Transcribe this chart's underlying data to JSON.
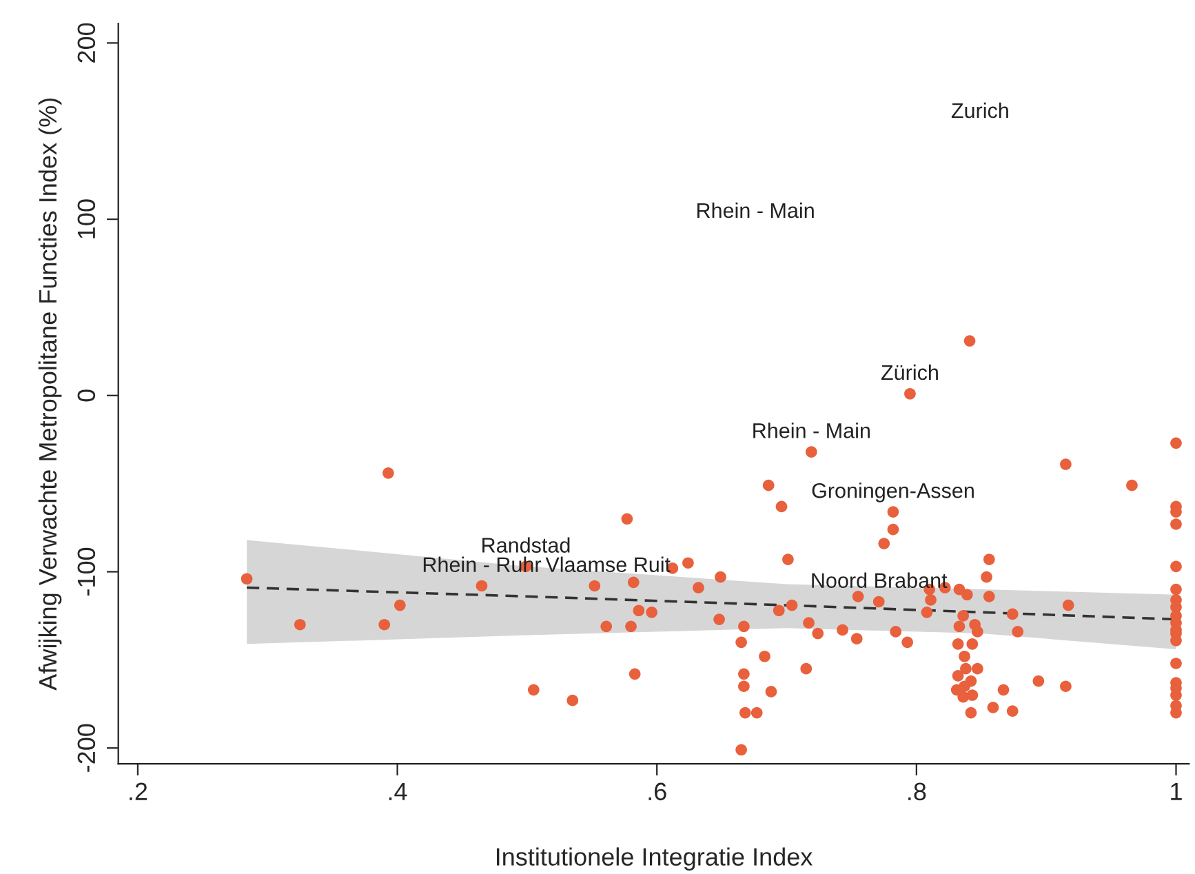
{
  "chart_data": {
    "type": "scatter",
    "xlabel": "Institutionele Integratie Index",
    "ylabel": "Afwijking Verwachte Metropolitane Functies Index (%)",
    "xlim": [
      0.185,
      1.01
    ],
    "ylim": [
      -209,
      211
    ],
    "xticks": [
      {
        "value": 0.2,
        "label": ".2"
      },
      {
        "value": 0.4,
        "label": ".4"
      },
      {
        "value": 0.6,
        "label": ".6"
      },
      {
        "value": 0.8,
        "label": ".8"
      },
      {
        "value": 1,
        "label": "1"
      }
    ],
    "yticks": [
      -200,
      -100,
      0,
      100,
      200
    ],
    "grid": false,
    "legend": false,
    "marker": "circle",
    "series": [
      {
        "color": "#e8603c",
        "x": [
          0.284,
          0.393,
          0.577,
          0.325,
          0.39,
          0.402,
          0.465,
          0.499,
          0.552,
          0.582,
          0.612,
          0.624,
          0.586,
          0.596,
          0.561,
          0.58,
          0.583,
          0.505,
          0.535,
          0.841,
          0.795,
          0.719,
          0.686,
          0.696,
          0.915,
          0.782,
          0.782,
          0.775,
          0.701,
          0.649,
          0.632,
          0.856,
          0.854,
          0.856,
          0.81,
          0.822,
          0.833,
          0.839,
          0.811,
          0.755,
          0.771,
          0.704,
          0.694,
          0.808,
          0.648,
          0.667,
          0.717,
          0.724,
          0.743,
          0.754,
          0.784,
          0.793,
          0.836,
          0.845,
          0.847,
          0.833,
          0.874,
          0.878,
          0.917,
          0.665,
          0.683,
          0.715,
          0.832,
          0.843,
          0.837,
          0.838,
          0.847,
          0.832,
          0.842,
          0.667,
          0.667,
          0.688,
          0.831,
          0.837,
          0.836,
          0.843,
          0.867,
          0.894,
          0.915,
          0.668,
          0.677,
          0.842,
          0.859,
          0.874,
          0.665,
          0.966,
          1,
          1,
          1,
          1,
          1,
          1,
          1,
          1,
          1,
          1,
          1,
          1,
          1,
          1,
          1,
          1,
          1,
          1,
          1
        ],
        "values": [
          -104,
          -44,
          -70,
          -130,
          -130,
          -119,
          -108,
          -97,
          -108,
          -106,
          -98,
          -95,
          -122,
          -123,
          -131,
          -131,
          -158,
          -167,
          -173,
          31,
          1,
          -32,
          -51,
          -63,
          -39,
          -66,
          -76,
          -84,
          -93,
          -103,
          -109,
          -93,
          -103,
          -114,
          -110,
          -109,
          -110,
          -113,
          -116,
          -114,
          -117,
          -119,
          -122,
          -123,
          -127,
          -131,
          -129,
          -135,
          -133,
          -138,
          -134,
          -140,
          -125,
          -130,
          -134,
          -131,
          -124,
          -134,
          -119,
          -140,
          -148,
          -155,
          -141,
          -141,
          -148,
          -155,
          -155,
          -159,
          -162,
          -158,
          -165,
          -168,
          -167,
          -165,
          -171,
          -170,
          -167,
          -162,
          -165,
          -180,
          -180,
          -180,
          -177,
          -179,
          -201,
          -51,
          -27,
          -63,
          -66,
          -73,
          -97,
          -110,
          -116,
          -120,
          -125,
          -129,
          -133,
          -135,
          -139,
          -152,
          -163,
          -166,
          -170,
          -176,
          -180
        ]
      },
      {
        "type": "line",
        "color": "#333333",
        "line_style": "dashed",
        "marker": "none",
        "x": [
          0.284,
          0.5,
          0.7,
          0.85,
          1
        ],
        "values": [
          -109,
          -114,
          -119,
          -123,
          -127
        ],
        "lower": [
          -141,
          -136,
          -132,
          -135,
          -144
        ],
        "upper": [
          -82,
          -97,
          -107,
          -110,
          -113
        ]
      }
    ],
    "annotations": [
      "Zurich",
      "Rhein - Main",
      {
        "text": "Zürich",
        "x": 0.795,
        "y": 1
      },
      {
        "text": "Rhein - Main",
        "x": 0.719,
        "y": -32
      },
      {
        "text": "Groningen-Assen",
        "x": 0.782,
        "y": -66
      },
      {
        "text": "Randstad",
        "x": 0.499,
        "y": -97
      },
      {
        "text": "Rhein - Ruhr",
        "x": 0.465,
        "y": -108
      },
      {
        "text": "Vlaamse Ruit",
        "x": 0.552,
        "y": -108
      },
      {
        "text": "Noord Brabant",
        "x": 0.771,
        "y": -117
      }
    ]
  }
}
